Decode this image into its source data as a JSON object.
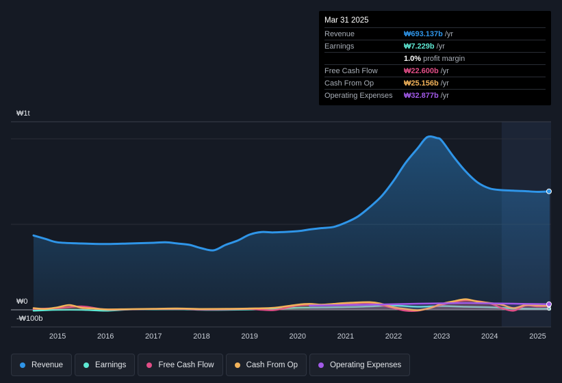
{
  "tooltip": {
    "date": "Mar 31 2025",
    "rows": [
      {
        "label": "Revenue",
        "value": "₩693.137b",
        "unit": "/yr",
        "color": "#2f95e8"
      },
      {
        "label": "Earnings",
        "value": "₩7.229b",
        "unit": "/yr",
        "color": "#5ee8d3"
      },
      {
        "label": "",
        "value": "1.0%",
        "unit": "profit margin",
        "color": "#ffffff"
      },
      {
        "label": "Free Cash Flow",
        "value": "₩22.600b",
        "unit": "/yr",
        "color": "#e14d86"
      },
      {
        "label": "Cash From Op",
        "value": "₩25.156b",
        "unit": "/yr",
        "color": "#f2b35a"
      },
      {
        "label": "Operating Expenses",
        "value": "₩32.877b",
        "unit": "/yr",
        "color": "#a25ae8"
      }
    ]
  },
  "legend": [
    {
      "label": "Revenue",
      "color": "#2f95e8"
    },
    {
      "label": "Earnings",
      "color": "#5ee8d3"
    },
    {
      "label": "Free Cash Flow",
      "color": "#e14d86"
    },
    {
      "label": "Cash From Op",
      "color": "#f2b35a"
    },
    {
      "label": "Operating Expenses",
      "color": "#a25ae8"
    }
  ],
  "chart_data": {
    "type": "area",
    "ylabel_top": "₩1t",
    "ylabel_zero": "₩0",
    "ylabel_bottom": "-₩100b",
    "ylim": [
      -100,
      1100
    ],
    "xlim": [
      2014.5,
      2025.25
    ],
    "x_ticks": [
      "2015",
      "2016",
      "2017",
      "2018",
      "2019",
      "2020",
      "2021",
      "2022",
      "2023",
      "2024",
      "2025"
    ],
    "x_tick_values": [
      2015,
      2016,
      2017,
      2018,
      2019,
      2020,
      2021,
      2022,
      2023,
      2024,
      2025
    ],
    "highlight_from": 2024.25,
    "series": [
      {
        "name": "Revenue",
        "color": "#2f95e8",
        "x": [
          2014.5,
          2014.75,
          2015.0,
          2015.5,
          2016.0,
          2016.5,
          2017.0,
          2017.25,
          2017.5,
          2017.75,
          2018.0,
          2018.25,
          2018.5,
          2018.75,
          2019.0,
          2019.25,
          2019.5,
          2020.0,
          2020.25,
          2020.5,
          2020.75,
          2021.0,
          2021.25,
          2021.5,
          2021.75,
          2022.0,
          2022.25,
          2022.5,
          2022.7,
          2022.9,
          2023.0,
          2023.25,
          2023.5,
          2023.75,
          2024.0,
          2024.25,
          2024.5,
          2024.75,
          2025.0,
          2025.25
        ],
        "values": [
          435,
          415,
          395,
          388,
          385,
          388,
          392,
          395,
          388,
          380,
          360,
          348,
          380,
          405,
          440,
          455,
          453,
          460,
          470,
          478,
          485,
          510,
          545,
          600,
          665,
          755,
          860,
          945,
          1010,
          1005,
          990,
          895,
          810,
          745,
          710,
          700,
          697,
          694,
          690,
          693
        ]
      },
      {
        "name": "Earnings",
        "color": "#5ee8d3",
        "x": [
          2014.5,
          2015.0,
          2015.5,
          2016.0,
          2016.5,
          2017.0,
          2017.5,
          2018.0,
          2018.5,
          2019.0,
          2019.5,
          2020.0,
          2020.5,
          2021.0,
          2021.5,
          2022.0,
          2022.5,
          2023.0,
          2023.5,
          2024.0,
          2024.5,
          2025.0,
          2025.25
        ],
        "values": [
          -5,
          0,
          0,
          -5,
          2,
          3,
          4,
          0,
          0,
          2,
          5,
          12,
          14,
          16,
          20,
          25,
          18,
          22,
          18,
          15,
          8,
          6,
          7
        ]
      },
      {
        "name": "Free Cash Flow",
        "color": "#e14d86",
        "x": [
          2014.5,
          2015.0,
          2015.5,
          2016.0,
          2016.5,
          2017.0,
          2017.5,
          2018.0,
          2018.5,
          2019.0,
          2019.5,
          2020.0,
          2020.5,
          2021.0,
          2021.5,
          2022.0,
          2022.25,
          2022.5,
          2022.75,
          2023.0,
          2023.5,
          2024.0,
          2024.25,
          2024.5,
          2024.75,
          2025.0,
          2025.25
        ],
        "values": [
          5,
          10,
          20,
          2,
          3,
          5,
          6,
          2,
          3,
          5,
          -2,
          25,
          30,
          35,
          40,
          10,
          -5,
          -5,
          10,
          30,
          55,
          38,
          10,
          -5,
          25,
          20,
          23
        ]
      },
      {
        "name": "Cash From Op",
        "color": "#f2b35a",
        "x": [
          2014.5,
          2014.75,
          2015.0,
          2015.25,
          2015.5,
          2015.75,
          2016.0,
          2016.5,
          2017.0,
          2017.5,
          2018.0,
          2018.5,
          2019.0,
          2019.5,
          2020.0,
          2020.25,
          2020.5,
          2020.75,
          2021.0,
          2021.5,
          2021.75,
          2022.0,
          2022.25,
          2022.5,
          2022.75,
          2023.0,
          2023.25,
          2023.5,
          2023.75,
          2024.0,
          2024.25,
          2024.5,
          2024.75,
          2025.0,
          2025.25
        ],
        "values": [
          10,
          5,
          15,
          28,
          12,
          8,
          3,
          4,
          6,
          8,
          5,
          6,
          8,
          12,
          30,
          35,
          30,
          35,
          40,
          45,
          35,
          15,
          5,
          -2,
          10,
          35,
          50,
          62,
          48,
          40,
          30,
          10,
          28,
          25,
          25
        ]
      },
      {
        "name": "Operating Expenses",
        "color": "#a25ae8",
        "x": [
          2020.25,
          2020.5,
          2021.0,
          2021.5,
          2022.0,
          2022.5,
          2023.0,
          2023.5,
          2024.0,
          2024.5,
          2025.0,
          2025.25
        ],
        "values": [
          25,
          26,
          28,
          30,
          33,
          36,
          38,
          40,
          38,
          36,
          34,
          33
        ]
      }
    ]
  }
}
